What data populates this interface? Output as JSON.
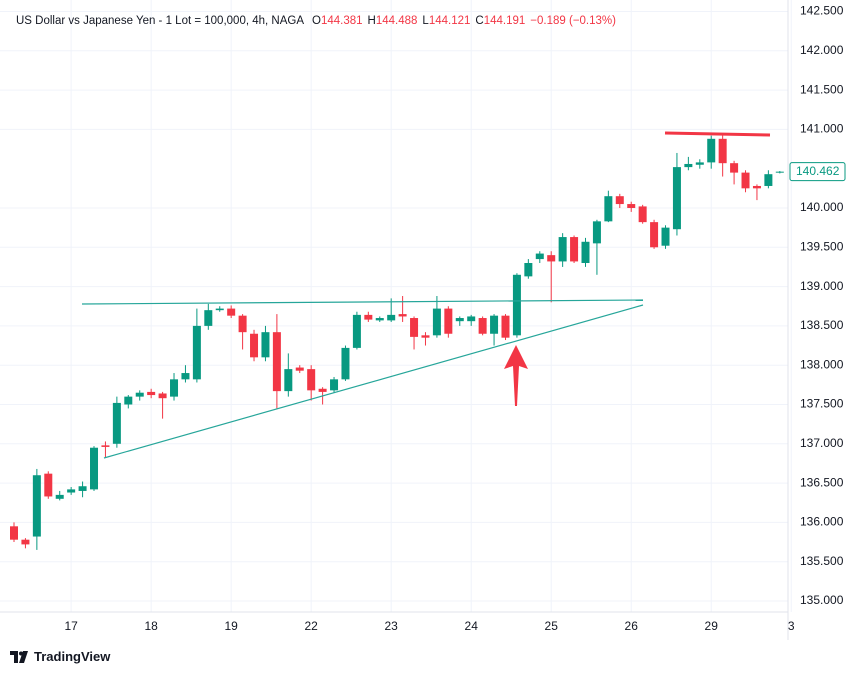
{
  "header": {
    "symbol": "US Dollar vs Japanese Yen - 1 Lot = 100,000, 4h, NAGA",
    "o_label": "O",
    "o": "144.381",
    "h_label": "H",
    "h": "144.488",
    "l_label": "L",
    "l": "144.121",
    "c_label": "C",
    "c": "144.191",
    "change": "−0.189 (−0.13%)"
  },
  "footer": {
    "brand": "TradingView"
  },
  "chart_data": {
    "type": "candlestick",
    "up_color": "#089981",
    "down_color": "#f23645",
    "grid": true,
    "categories": [
      null,
      null,
      null,
      null,
      null,
      "17",
      null,
      null,
      null,
      null,
      null,
      null,
      "18",
      null,
      null,
      null,
      null,
      null,
      null,
      "19",
      null,
      null,
      null,
      null,
      null,
      null,
      "22",
      null,
      null,
      null,
      null,
      null,
      null,
      "23",
      null,
      null,
      null,
      null,
      null,
      null,
      "24",
      null,
      null,
      null,
      null,
      null,
      null,
      "25",
      null,
      null,
      null,
      null,
      null,
      null,
      "26",
      null,
      null,
      null,
      null,
      null,
      null,
      "29",
      null,
      null,
      null,
      null,
      null,
      null,
      "3"
    ],
    "open": [
      135.95,
      135.78,
      135.82,
      136.62,
      136.3,
      136.38,
      136.4,
      136.42,
      136.98,
      137.0,
      137.5,
      137.6,
      137.66,
      137.64,
      137.6,
      137.82,
      137.82,
      138.5,
      138.7,
      138.72,
      138.63,
      138.4,
      138.1,
      138.42,
      137.67,
      137.97,
      137.95,
      137.7,
      137.68,
      137.82,
      138.22,
      138.64,
      138.57,
      138.57,
      138.65,
      138.6,
      138.38,
      138.38,
      138.72,
      138.56,
      138.56,
      138.6,
      138.4,
      138.63,
      138.38,
      139.13,
      139.35,
      139.4,
      139.32,
      139.63,
      139.3,
      139.55,
      139.83,
      140.15,
      140.05,
      140.02,
      139.82,
      139.52,
      139.73,
      140.52,
      140.55,
      140.58,
      140.88,
      140.57,
      140.45,
      140.28,
      140.28,
      140.45,
      null
    ],
    "high": [
      136.0,
      135.8,
      136.68,
      136.65,
      136.4,
      136.45,
      136.52,
      136.97,
      137.03,
      137.6,
      137.62,
      137.68,
      137.7,
      137.66,
      137.9,
      138.0,
      138.72,
      138.78,
      138.75,
      138.76,
      138.65,
      138.45,
      138.5,
      138.65,
      138.15,
      138.0,
      138.0,
      137.72,
      137.85,
      138.25,
      138.68,
      138.68,
      138.62,
      138.85,
      138.88,
      138.62,
      138.42,
      138.88,
      138.75,
      138.62,
      138.64,
      138.62,
      138.65,
      138.65,
      139.17,
      139.35,
      139.45,
      139.45,
      139.68,
      139.65,
      139.62,
      139.85,
      140.22,
      140.18,
      140.08,
      140.04,
      139.85,
      139.78,
      140.7,
      140.65,
      140.62,
      140.92,
      140.95,
      140.6,
      140.48,
      140.3,
      140.48,
      140.47,
      null
    ],
    "low": [
      135.75,
      135.67,
      135.65,
      136.3,
      136.28,
      136.35,
      136.32,
      136.4,
      136.82,
      136.95,
      137.45,
      137.55,
      137.58,
      137.32,
      137.55,
      137.78,
      137.78,
      138.45,
      138.68,
      138.6,
      138.2,
      138.05,
      138.05,
      137.45,
      137.6,
      137.9,
      137.55,
      137.5,
      137.65,
      137.8,
      138.2,
      138.55,
      138.55,
      138.55,
      138.55,
      138.2,
      138.25,
      138.35,
      138.35,
      138.5,
      138.5,
      138.38,
      138.25,
      138.32,
      138.35,
      139.1,
      139.3,
      138.8,
      139.25,
      139.3,
      139.25,
      139.15,
      139.82,
      140.0,
      139.95,
      139.8,
      139.48,
      139.48,
      139.65,
      140.48,
      140.5,
      140.5,
      140.4,
      140.3,
      140.2,
      140.1,
      140.25,
      140.44,
      null
    ],
    "close": [
      135.78,
      135.72,
      136.6,
      136.33,
      136.35,
      136.42,
      136.46,
      136.95,
      136.96,
      137.52,
      137.6,
      137.65,
      137.62,
      137.58,
      137.82,
      137.9,
      138.5,
      138.7,
      138.72,
      138.63,
      138.42,
      138.1,
      138.42,
      137.67,
      137.95,
      137.93,
      137.68,
      137.66,
      137.82,
      138.22,
      138.64,
      138.58,
      138.6,
      138.64,
      138.62,
      138.36,
      138.35,
      138.72,
      138.4,
      138.6,
      138.62,
      138.4,
      138.63,
      138.35,
      139.15,
      139.3,
      139.42,
      139.32,
      139.63,
      139.32,
      139.57,
      139.83,
      140.15,
      140.05,
      140.0,
      139.82,
      139.5,
      139.75,
      140.52,
      140.56,
      140.58,
      140.88,
      140.57,
      140.45,
      140.25,
      140.25,
      140.43,
      140.462,
      null
    ],
    "last_price": 140.462,
    "ylim": [
      134.86,
      142.646
    ],
    "yticks": [
      {
        "value": 135,
        "label": "135.000"
      },
      {
        "value": 135.5,
        "label": "135.500"
      },
      {
        "value": 136,
        "label": "136.000"
      },
      {
        "value": 136.5,
        "label": "136.500"
      },
      {
        "value": 137,
        "label": "137.000"
      },
      {
        "value": 137.5,
        "label": "137.500"
      },
      {
        "value": 138,
        "label": "138.000"
      },
      {
        "value": 138.5,
        "label": "138.500"
      },
      {
        "value": 139,
        "label": "139.000"
      },
      {
        "value": 139.5,
        "label": "139.500"
      },
      {
        "value": 140,
        "label": "140.000"
      },
      {
        "value": 141,
        "label": "141.000"
      },
      {
        "value": 141.5,
        "label": "141.500"
      },
      {
        "value": 142,
        "label": "142.000"
      },
      {
        "value": 142.5,
        "label": "142.500"
      }
    ]
  }
}
